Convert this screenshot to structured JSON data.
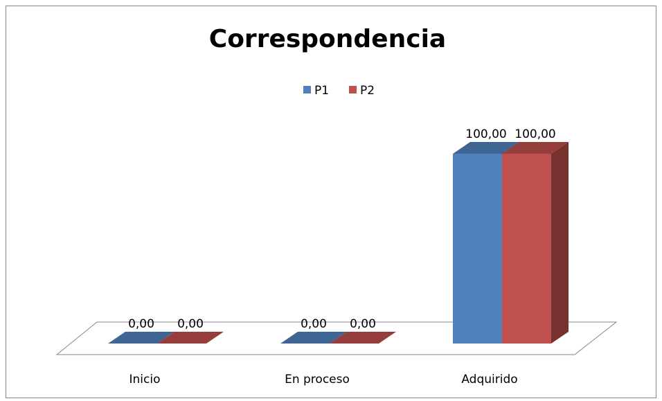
{
  "chart_data": {
    "type": "bar3d",
    "title": "Correspondencia",
    "categories": [
      "Inicio",
      "En proceso",
      "Adquirido"
    ],
    "series": [
      {
        "name": "P1",
        "color": "#4f81bd",
        "values": [
          0,
          0,
          100
        ],
        "value_labels": [
          "0,00",
          "0,00",
          "100,00"
        ]
      },
      {
        "name": "P2",
        "color": "#c0504d",
        "values": [
          0,
          0,
          100
        ],
        "value_labels": [
          "0,00",
          "0,00",
          "100,00"
        ]
      }
    ],
    "legend": "top"
  }
}
